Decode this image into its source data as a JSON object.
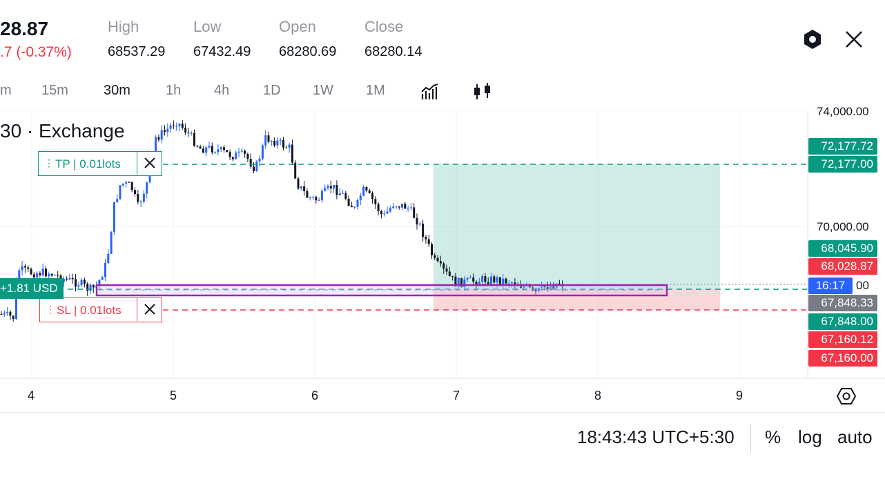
{
  "header": {
    "last_price": "28.87",
    "change": ".7 (-0.37%)",
    "high_label": "High",
    "high": "68537.29",
    "low_label": "Low",
    "low": "67432.49",
    "open_label": "Open",
    "open": "68280.69",
    "close_label": "Close",
    "close": "68280.14"
  },
  "timeframes": [
    "m",
    "15m",
    "30m",
    "1h",
    "4h",
    "1D",
    "1W",
    "1M"
  ],
  "active_timeframe": "30m",
  "chart": {
    "symbol_title": "30 · Exchange",
    "price_axis": [
      "74,000.00",
      "70,000.00",
      "00"
    ],
    "date_axis": [
      "4",
      "5",
      "6",
      "7",
      "8",
      "9"
    ],
    "price_tags": [
      {
        "text": "72,177.72",
        "color": "#089981"
      },
      {
        "text": "72,177.00",
        "color": "#089981"
      },
      {
        "text": "68,045.90",
        "color": "#089981"
      },
      {
        "text": "68,028.87",
        "color": "#f23645"
      },
      {
        "text": "16:17",
        "color": "#2962ff"
      },
      {
        "text": "67,848.33",
        "color": "#787b86"
      },
      {
        "text": "67,848.00",
        "color": "#089981"
      },
      {
        "text": "67,160.12",
        "color": "#f23645"
      },
      {
        "text": "67,160.00",
        "color": "#f23645"
      }
    ],
    "tp_order": {
      "label": "TP | 0.01lots"
    },
    "sl_order": {
      "label": "SL | 0.01lots"
    },
    "position_pnl": "+1.81 USD"
  },
  "footer": {
    "time": "18:43:43 UTC+5:30",
    "percent": "%",
    "log": "log",
    "auto": "auto"
  },
  "colors": {
    "up": "#2962ff",
    "down": "#131722",
    "tp": "#089981",
    "sl": "#f23645",
    "highlight": "#9c27b0"
  }
}
